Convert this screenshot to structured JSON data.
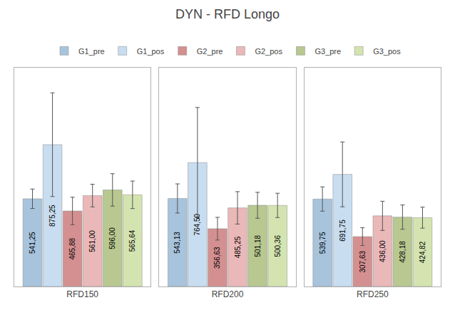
{
  "chart_data": {
    "type": "bar",
    "title": "DYN - RFD Longo",
    "categories": [
      "RFD150",
      "RFD200",
      "RFD250"
    ],
    "series": [
      {
        "name": "G1_pre",
        "color": "#a8c4dc",
        "values": [
          541.25,
          543.13,
          539.75
        ],
        "errors": [
          60,
          90,
          75
        ],
        "value_labels": [
          "541,25",
          "543,13",
          "539,75"
        ]
      },
      {
        "name": "G1_pos",
        "color": "#c8ddf0",
        "values": [
          875.25,
          764.5,
          691.75
        ],
        "errors": [
          320,
          340,
          200
        ],
        "value_labels": [
          "875,25",
          "764,50",
          "691,75"
        ]
      },
      {
        "name": "G2_pre",
        "color": "#d49090",
        "values": [
          465.88,
          356.63,
          307.63
        ],
        "errors": [
          85,
          70,
          55
        ],
        "value_labels": [
          "465,88",
          "356,63",
          "307,63"
        ]
      },
      {
        "name": "G2_pos",
        "color": "#eab8b8",
        "values": [
          561.0,
          485.25,
          436.0
        ],
        "errors": [
          70,
          100,
          90
        ],
        "value_labels": [
          "561,00",
          "485,25",
          "436,00"
        ]
      },
      {
        "name": "G3_pre",
        "color": "#b8c890",
        "values": [
          596.0,
          501.18,
          428.18
        ],
        "errors": [
          100,
          80,
          75
        ],
        "value_labels": [
          "596,00",
          "501,18",
          "428,18"
        ]
      },
      {
        "name": "G3_pos",
        "color": "#d4e4b0",
        "values": [
          565.64,
          500.36,
          424.82
        ],
        "errors": [
          85,
          75,
          65
        ],
        "value_labels": [
          "565,64",
          "500,36",
          "424,82"
        ]
      }
    ],
    "ylim": [
      0,
      1350
    ],
    "yticks": [],
    "grid": false,
    "legend": "top",
    "data_labels": true,
    "tick_labels": "x"
  }
}
